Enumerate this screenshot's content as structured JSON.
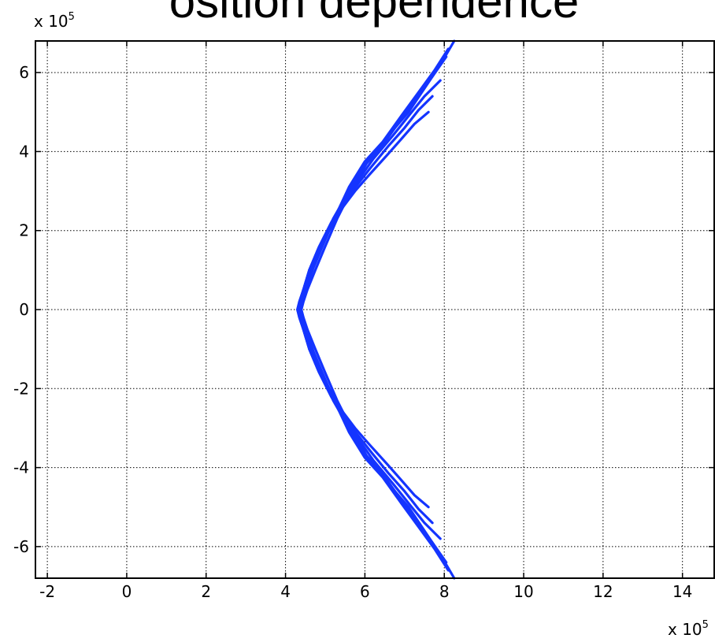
{
  "chart_data": {
    "type": "line",
    "title": "osition dependence",
    "xlabel": "",
    "ylabel": "",
    "x_axis": {
      "range": [
        -2.3,
        14.8
      ],
      "ticks": [
        -2,
        0,
        2,
        4,
        6,
        8,
        10,
        12,
        14
      ],
      "tick_labels": [
        "-2",
        "0",
        "2",
        "4",
        "6",
        "8",
        "10",
        "12",
        "14"
      ],
      "multiplier_base": "x 10",
      "multiplier_exp": "5"
    },
    "y_axis": {
      "range": [
        -6.8,
        6.8
      ],
      "ticks": [
        6,
        4,
        2,
        0,
        -2,
        -4,
        -6
      ],
      "tick_labels": [
        "6",
        "4",
        "2",
        "0",
        "-2",
        "-4",
        "-6"
      ],
      "multiplier_base": "x 10",
      "multiplier_exp": "5"
    },
    "grid": true,
    "series_color": "#1434ff",
    "series": [
      {
        "name": "",
        "x": [
          8.25,
          7.9,
          7.5,
          7.1,
          6.5,
          6.1,
          5.7,
          5.3,
          5.0,
          4.75,
          4.55,
          4.45,
          4.4,
          4.45,
          4.55,
          4.75,
          5.0,
          5.3,
          5.7,
          6.1,
          6.5,
          7.1,
          7.5,
          7.9,
          8.25
        ],
        "y": [
          6.8,
          6.2,
          5.6,
          5.0,
          4.3,
          3.8,
          3.1,
          2.3,
          1.6,
          1.0,
          0.5,
          0.2,
          0.0,
          -0.2,
          -0.5,
          -1.0,
          -1.6,
          -2.3,
          -3.1,
          -3.8,
          -4.3,
          -5.0,
          -5.6,
          -6.2,
          -6.8
        ]
      },
      {
        "name": "",
        "x": [
          8.05,
          7.7,
          7.3,
          6.9,
          6.4,
          5.95,
          5.6,
          5.2,
          4.9,
          4.65,
          4.45,
          4.35,
          4.3,
          4.35,
          4.45,
          4.65,
          4.9,
          5.2,
          5.6,
          5.95,
          6.4,
          6.9,
          7.3,
          7.7,
          8.05
        ],
        "y": [
          6.4,
          5.9,
          5.4,
          4.8,
          4.1,
          3.6,
          3.0,
          2.3,
          1.6,
          1.0,
          0.5,
          0.2,
          0.0,
          -0.2,
          -0.5,
          -1.0,
          -1.6,
          -2.3,
          -3.0,
          -3.6,
          -4.1,
          -4.8,
          -5.4,
          -5.9,
          -6.4
        ]
      },
      {
        "name": "",
        "x": [
          7.9,
          7.5,
          7.1,
          6.7,
          6.2,
          5.85,
          5.5,
          5.15,
          4.85,
          4.6,
          4.45,
          4.35,
          4.3,
          4.35,
          4.45,
          4.6,
          4.85,
          5.15,
          5.5,
          5.85,
          6.2,
          6.7,
          7.1,
          7.5,
          7.9
        ],
        "y": [
          5.8,
          5.4,
          4.9,
          4.4,
          3.8,
          3.3,
          2.8,
          2.2,
          1.6,
          1.0,
          0.5,
          0.2,
          0.0,
          -0.2,
          -0.5,
          -1.0,
          -1.6,
          -2.2,
          -2.8,
          -3.3,
          -3.8,
          -4.4,
          -4.9,
          -5.4,
          -5.8
        ]
      },
      {
        "name": "",
        "x": [
          7.6,
          7.25,
          6.9,
          6.55,
          6.1,
          5.75,
          5.45,
          5.1,
          4.82,
          4.6,
          4.45,
          4.37,
          4.33,
          4.37,
          4.45,
          4.6,
          4.82,
          5.1,
          5.45,
          5.75,
          6.1,
          6.55,
          6.9,
          7.25,
          7.6
        ],
        "y": [
          5.0,
          4.7,
          4.3,
          3.9,
          3.4,
          3.0,
          2.6,
          2.0,
          1.5,
          1.0,
          0.5,
          0.2,
          0.0,
          -0.2,
          -0.5,
          -1.0,
          -1.5,
          -2.0,
          -2.6,
          -3.0,
          -3.4,
          -3.9,
          -4.3,
          -4.7,
          -5.0
        ]
      },
      {
        "name": "",
        "x": [
          8.1,
          7.75,
          7.35,
          6.95,
          6.45,
          6.0,
          5.6,
          5.25,
          4.95,
          4.7,
          4.5,
          4.4,
          4.36,
          4.4,
          4.5,
          4.7,
          4.95,
          5.25,
          5.6,
          6.0,
          6.45,
          6.95,
          7.35,
          7.75,
          8.1
        ],
        "y": [
          6.6,
          6.05,
          5.5,
          4.95,
          4.25,
          3.75,
          3.1,
          2.35,
          1.65,
          1.05,
          0.5,
          0.2,
          0.0,
          -0.2,
          -0.5,
          -1.05,
          -1.65,
          -2.35,
          -3.1,
          -3.75,
          -4.25,
          -4.95,
          -5.5,
          -6.05,
          -6.6
        ]
      },
      {
        "name": "",
        "x": [
          7.7,
          7.35,
          7.0,
          6.6,
          6.15,
          5.8,
          5.45,
          5.12,
          4.83,
          4.6,
          4.45,
          4.36,
          4.32,
          4.36,
          4.45,
          4.6,
          4.83,
          5.12,
          5.45,
          5.8,
          6.15,
          6.6,
          7.0,
          7.35,
          7.7
        ],
        "y": [
          5.4,
          5.05,
          4.6,
          4.15,
          3.6,
          3.15,
          2.7,
          2.1,
          1.55,
          1.0,
          0.5,
          0.2,
          0.0,
          -0.2,
          -0.5,
          -1.0,
          -1.55,
          -2.1,
          -2.7,
          -3.15,
          -3.6,
          -4.15,
          -4.6,
          -5.05,
          -5.4
        ]
      }
    ]
  }
}
